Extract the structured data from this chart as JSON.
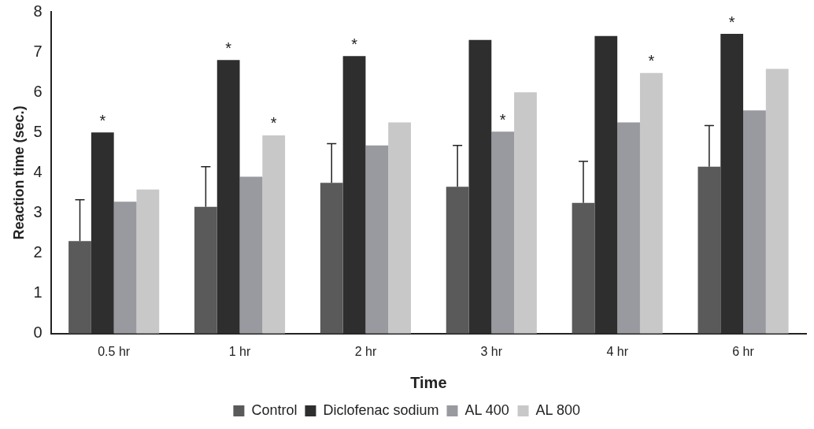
{
  "chart_data": {
    "type": "bar",
    "xlabel": "Time",
    "ylabel": "Reaction time (sec.)",
    "categories": [
      "0.5 hr",
      "1 hr",
      "2 hr",
      "3 hr",
      "4 hr",
      "6 hr"
    ],
    "series": [
      {
        "name": "Control",
        "color": "#5a5a5a",
        "values": [
          2.3,
          3.15,
          3.75,
          3.65,
          3.25,
          4.15
        ],
        "errors": [
          [
            2.3,
            3.33
          ],
          [
            3.15,
            4.15
          ],
          [
            3.75,
            4.72
          ],
          [
            3.65,
            4.68
          ],
          [
            3.25,
            4.28
          ],
          [
            4.15,
            5.17
          ]
        ]
      },
      {
        "name": "Diclofenac sodium",
        "color": "#2e2e2e",
        "values": [
          5.0,
          6.8,
          6.9,
          7.3,
          7.4,
          7.45
        ]
      },
      {
        "name": "AL 400",
        "color": "#999aa0",
        "values": [
          3.28,
          3.9,
          4.68,
          5.02,
          5.25,
          5.55
        ]
      },
      {
        "name": "AL 800",
        "color": "#c8c8c8",
        "values": [
          3.58,
          4.93,
          5.25,
          6.0,
          6.48,
          6.58
        ]
      }
    ],
    "annotations": [
      {
        "text": "*",
        "x": "0.5 hr",
        "y": 5.0
      },
      {
        "text": "*",
        "x": "1 hr",
        "y": 6.8
      },
      {
        "text": "*",
        "x": "1 hr",
        "y": 4.93
      },
      {
        "text": "*",
        "x": "2 hr",
        "y": 6.9
      },
      {
        "text": "*",
        "x": "3 hr",
        "y": 5.02
      },
      {
        "text": "*",
        "x": "4 hr",
        "y": 6.48
      },
      {
        "text": "*",
        "x": "6 hr",
        "y": 7.45
      }
    ],
    "ylim": [
      0,
      8
    ],
    "yticks": [
      0,
      1,
      2,
      3,
      4,
      5,
      6,
      7,
      8
    ],
    "grid": false,
    "legend": "bottom"
  }
}
